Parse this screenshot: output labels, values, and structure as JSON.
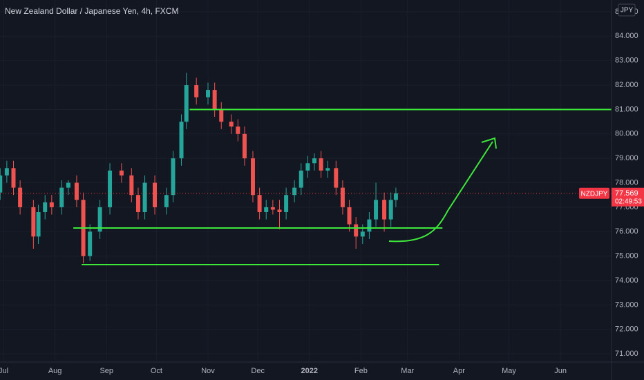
{
  "chart_data": {
    "type": "candlestick",
    "title": "New Zealand Dollar / Japanese Yen, 4h, FXCM",
    "currency": "JPY",
    "symbol": "NZDJPY",
    "last_price": {
      "value": 77.569,
      "label": "77.569"
    },
    "countdown": "02:49:53",
    "up_color": "#26a69a",
    "down_color": "#ef5350",
    "level_color": "#3ee83a",
    "grid": true,
    "x": [
      -2,
      2,
      6,
      10,
      18,
      21,
      25,
      29,
      35,
      39,
      44,
      48,
      52,
      58,
      64,
      71,
      77,
      81,
      85,
      91,
      98,
      102,
      107,
      110,
      116,
      123,
      127,
      131,
      137,
      141,
      145,
      150,
      154,
      158,
      162,
      166,
      170,
      175,
      179,
      183,
      187,
      191,
      195,
      200,
      204,
      208,
      212,
      216,
      220,
      224,
      229,
      233,
      236
    ],
    "ohlc": [
      [
        77.6,
        78.6,
        77.3,
        78.3
      ],
      [
        78.3,
        78.9,
        78.0,
        78.6
      ],
      [
        78.6,
        78.9,
        77.5,
        77.8
      ],
      [
        77.8,
        78.1,
        76.7,
        77.0
      ],
      [
        77.0,
        77.3,
        75.3,
        75.8
      ],
      [
        75.8,
        77.1,
        75.5,
        76.8
      ],
      [
        76.8,
        77.5,
        76.5,
        77.2
      ],
      [
        77.2,
        77.5,
        76.7,
        77.0
      ],
      [
        77.0,
        78.1,
        76.7,
        77.8
      ],
      [
        77.8,
        78.1,
        77.5,
        78.0
      ],
      [
        78.0,
        78.3,
        77.0,
        77.3
      ],
      [
        77.3,
        77.6,
        74.7,
        75.0
      ],
      [
        75.0,
        76.3,
        74.8,
        76.0
      ],
      [
        76.0,
        77.3,
        75.7,
        77.0
      ],
      [
        77.0,
        78.8,
        76.7,
        78.5
      ],
      [
        78.5,
        78.8,
        78.0,
        78.3
      ],
      [
        78.3,
        78.6,
        77.2,
        77.5
      ],
      [
        77.5,
        77.8,
        76.5,
        76.8
      ],
      [
        76.8,
        78.3,
        76.5,
        78.0
      ],
      [
        78.0,
        78.3,
        76.7,
        77.0
      ],
      [
        77.0,
        77.8,
        76.7,
        77.5
      ],
      [
        77.5,
        79.3,
        77.2,
        79.0
      ],
      [
        79.0,
        80.8,
        78.7,
        80.5
      ],
      [
        80.5,
        82.5,
        80.2,
        82.0
      ],
      [
        82.0,
        82.3,
        81.2,
        81.5
      ],
      [
        81.5,
        82.1,
        81.2,
        81.8
      ],
      [
        81.8,
        82.1,
        80.7,
        81.0
      ],
      [
        81.0,
        81.3,
        80.2,
        80.5
      ],
      [
        80.5,
        80.8,
        80.0,
        80.3
      ],
      [
        80.3,
        80.6,
        79.7,
        80.0
      ],
      [
        80.0,
        80.3,
        78.7,
        79.0
      ],
      [
        79.0,
        79.3,
        77.2,
        77.5
      ],
      [
        77.5,
        77.8,
        76.5,
        76.8
      ],
      [
        76.8,
        77.3,
        76.5,
        77.0
      ],
      [
        77.0,
        77.3,
        76.7,
        76.9
      ],
      [
        76.9,
        77.3,
        76.1,
        76.8
      ],
      [
        76.8,
        77.8,
        76.5,
        77.5
      ],
      [
        77.5,
        78.1,
        77.2,
        77.8
      ],
      [
        77.8,
        78.8,
        77.5,
        78.5
      ],
      [
        78.5,
        79.1,
        78.2,
        78.8
      ],
      [
        78.8,
        79.2,
        78.5,
        79.0
      ],
      [
        79.0,
        79.3,
        78.2,
        78.5
      ],
      [
        78.5,
        78.9,
        78.2,
        78.6
      ],
      [
        78.6,
        78.9,
        77.5,
        77.8
      ],
      [
        77.8,
        78.1,
        76.7,
        77.0
      ],
      [
        77.0,
        77.3,
        76.0,
        76.3
      ],
      [
        76.3,
        76.6,
        75.3,
        75.8
      ],
      [
        75.8,
        76.3,
        75.5,
        76.0
      ],
      [
        76.0,
        76.8,
        75.7,
        76.5
      ],
      [
        76.5,
        78.0,
        76.2,
        77.3
      ],
      [
        77.3,
        77.6,
        76.0,
        76.5
      ],
      [
        76.5,
        77.6,
        76.2,
        77.3
      ],
      [
        77.3,
        77.8,
        77.0,
        77.569
      ]
    ],
    "levels": [
      {
        "y": 81.0,
        "x": [
          112,
          366
        ]
      },
      {
        "y": 76.15,
        "x": [
          42,
          264
        ]
      },
      {
        "y": 74.65,
        "x": [
          47,
          262
        ]
      }
    ],
    "xlim": [
      -2.1,
      365.7
    ],
    "ylim": [
      70.72,
      85.48
    ],
    "xticks": [
      {
        "value": 0,
        "label": "Jul"
      },
      {
        "value": 31,
        "label": "Aug"
      },
      {
        "value": 62,
        "label": "Sep"
      },
      {
        "value": 92,
        "label": "Oct"
      },
      {
        "value": 123,
        "label": "Nov"
      },
      {
        "value": 153,
        "label": "Dec"
      },
      {
        "value": 184,
        "label": "2022"
      },
      {
        "value": 215,
        "label": "Feb"
      },
      {
        "value": 243,
        "label": "Mar"
      },
      {
        "value": 274,
        "label": "Apr"
      },
      {
        "value": 304,
        "label": "May"
      },
      {
        "value": 335,
        "label": "Jun"
      }
    ],
    "yticks": [
      {
        "value": 71,
        "label": "71.000"
      },
      {
        "value": 72,
        "label": "72.000"
      },
      {
        "value": 73,
        "label": "73.000"
      },
      {
        "value": 74,
        "label": "74.000"
      },
      {
        "value": 75,
        "label": "75.000"
      },
      {
        "value": 76,
        "label": "76.000"
      },
      {
        "value": 77,
        "label": "77.000"
      },
      {
        "value": 78,
        "label": "78.000"
      },
      {
        "value": 79,
        "label": "79.000"
      },
      {
        "value": 80,
        "label": "80.000"
      },
      {
        "value": 81,
        "label": "81.000"
      },
      {
        "value": 82,
        "label": "82.000"
      },
      {
        "value": 83,
        "label": "83.000"
      },
      {
        "value": 84,
        "label": "84.000"
      },
      {
        "value": 85,
        "label": "85.000"
      }
    ]
  }
}
